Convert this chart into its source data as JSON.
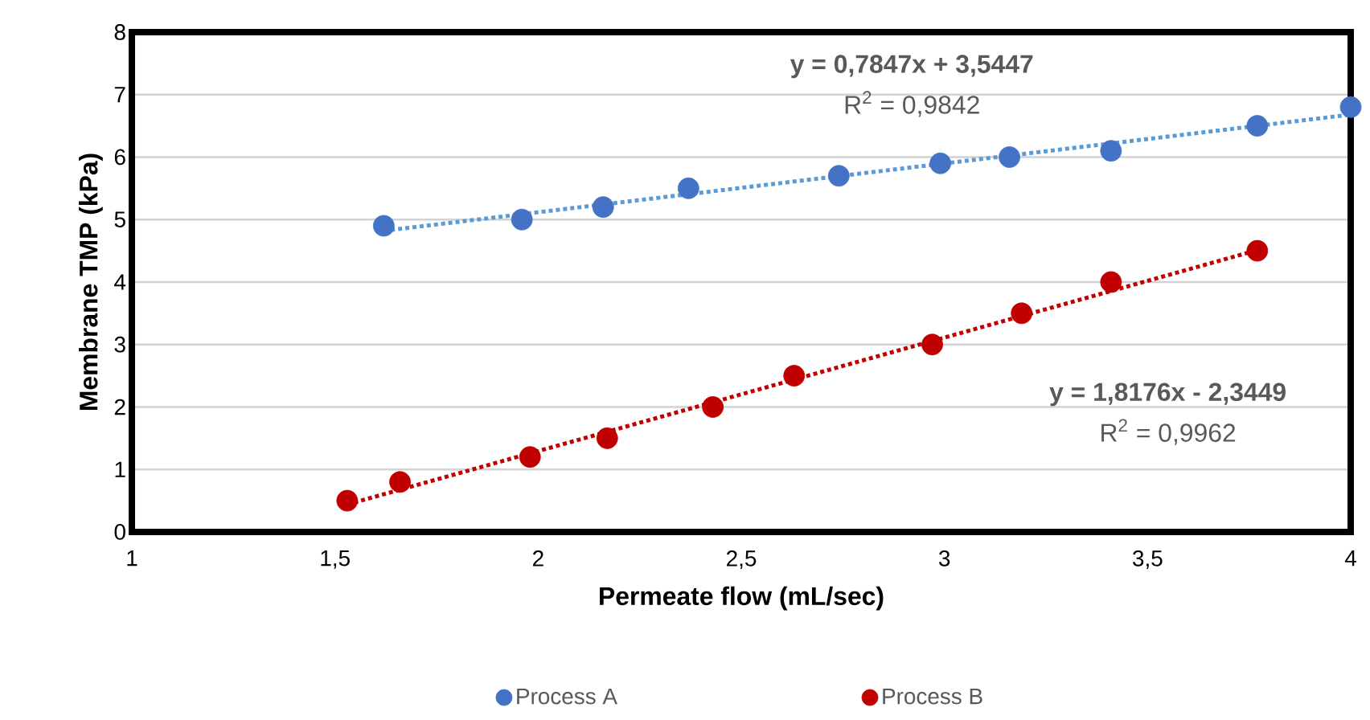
{
  "chart_data": {
    "type": "scatter",
    "xlabel": "Permeate flow (mL/sec)",
    "ylabel": "Membrane TMP (kPa)",
    "xlim": [
      1,
      4
    ],
    "xticks": [
      1,
      {
        "value": 1.5,
        "label": "1,5"
      },
      2,
      {
        "value": 2.5,
        "label": "2,5"
      },
      3,
      {
        "value": 3.5,
        "label": "3,5"
      },
      4
    ],
    "ylim": [
      0,
      8
    ],
    "yticks": [
      0,
      1,
      2,
      3,
      4,
      5,
      6,
      7,
      8
    ],
    "grid": "y",
    "legend": "bottom",
    "marker": "circle",
    "series": [
      {
        "name": "Process A",
        "color": "#4472c4",
        "x": [
          1.62,
          1.96,
          2.16,
          2.37,
          2.74,
          2.99,
          3.16,
          3.41,
          3.77,
          4.0
        ],
        "values": [
          4.9,
          5.0,
          5.2,
          5.5,
          5.7,
          5.9,
          6.0,
          6.1,
          6.5,
          6.8
        ]
      },
      {
        "name": "Process B",
        "color": "#c00000",
        "x": [
          1.53,
          1.66,
          1.98,
          2.17,
          2.43,
          2.63,
          2.97,
          3.19,
          3.41,
          3.77
        ],
        "values": [
          0.5,
          0.8,
          1.2,
          1.5,
          2.0,
          2.5,
          3.0,
          3.5,
          4.0,
          4.5
        ]
      },
      {
        "type": "line",
        "color": "#5b9bd5",
        "line_style": "dotted",
        "marker": "none",
        "x": [
          1.62,
          4.0
        ],
        "values": [
          4.82,
          6.68
        ]
      },
      {
        "type": "line",
        "color": "#c00000",
        "line_style": "dotted",
        "marker": "none",
        "x": [
          1.53,
          3.77
        ],
        "values": [
          0.44,
          4.51
        ]
      }
    ],
    "annotations": [
      "y = 0,7847x + 3,5447",
      "R$^{2}$ = 0,9842",
      "y = 1,8176x - 2,3449",
      "R$^{2}$ = 0,9962"
    ]
  }
}
